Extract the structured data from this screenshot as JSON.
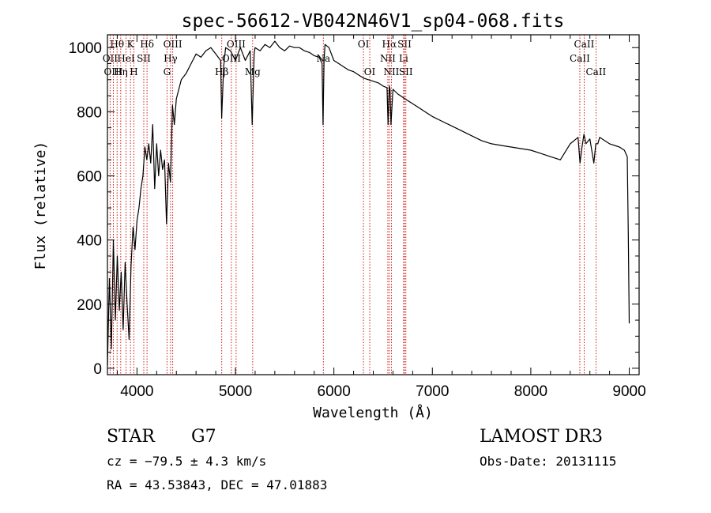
{
  "chart_data": {
    "type": "line",
    "title": "spec-56612-VB042N46V1_sp04-068.fits",
    "xlabel": "Wavelength (Å)",
    "ylabel": "Flux (relative)",
    "xlim": [
      3700,
      9100
    ],
    "ylim": [
      -20,
      1040
    ],
    "xticks": [
      4000,
      5000,
      6000,
      7000,
      8000,
      9000
    ],
    "xtick_labels": [
      "4000",
      "5000",
      "6000",
      "7000",
      "8000",
      "9000"
    ],
    "yticks": [
      0,
      200,
      400,
      600,
      800,
      1000
    ],
    "ytick_labels": [
      "0",
      "200",
      "400",
      "600",
      "800",
      "1000"
    ],
    "grid": false,
    "series": [
      {
        "name": "flux",
        "x": [
          3700,
          3720,
          3740,
          3760,
          3780,
          3800,
          3820,
          3840,
          3860,
          3880,
          3900,
          3920,
          3940,
          3960,
          3980,
          4000,
          4020,
          4040,
          4060,
          4080,
          4100,
          4120,
          4140,
          4160,
          4180,
          4200,
          4220,
          4240,
          4260,
          4280,
          4300,
          4320,
          4340,
          4360,
          4380,
          4400,
          4450,
          4500,
          4550,
          4600,
          4650,
          4700,
          4750,
          4800,
          4850,
          4860,
          4880,
          4900,
          4950,
          5000,
          5050,
          5100,
          5150,
          5170,
          5190,
          5200,
          5250,
          5300,
          5350,
          5400,
          5450,
          5500,
          5550,
          5600,
          5650,
          5700,
          5750,
          5800,
          5850,
          5880,
          5890,
          5900,
          5910,
          5950,
          6000,
          6050,
          6100,
          6150,
          6200,
          6250,
          6300,
          6350,
          6400,
          6450,
          6500,
          6540,
          6550,
          6563,
          6570,
          6580,
          6600,
          6650,
          6700,
          6750,
          6800,
          6850,
          6900,
          6950,
          7000,
          7100,
          7200,
          7300,
          7400,
          7500,
          7600,
          7700,
          7800,
          7900,
          8000,
          8100,
          8200,
          8300,
          8400,
          8480,
          8500,
          8520,
          8540,
          8560,
          8600,
          8640,
          8660,
          8680,
          8700,
          8800,
          8900,
          8950,
          8980,
          8990,
          9000
        ],
        "values": [
          10,
          280,
          60,
          400,
          150,
          350,
          180,
          300,
          120,
          330,
          200,
          90,
          320,
          440,
          370,
          460,
          500,
          560,
          600,
          690,
          650,
          700,
          640,
          760,
          560,
          700,
          600,
          680,
          620,
          650,
          450,
          640,
          580,
          820,
          760,
          840,
          900,
          920,
          950,
          980,
          970,
          990,
          1000,
          980,
          960,
          780,
          940,
          1000,
          990,
          960,
          1000,
          960,
          990,
          760,
          980,
          1000,
          990,
          1010,
          1000,
          1020,
          1000,
          990,
          1005,
          1000,
          1000,
          990,
          985,
          975,
          970,
          950,
          760,
          960,
          1010,
          1000,
          960,
          950,
          940,
          930,
          925,
          915,
          905,
          900,
          895,
          890,
          880,
          875,
          760,
          880,
          870,
          760,
          870,
          855,
          845,
          835,
          825,
          815,
          805,
          795,
          785,
          770,
          755,
          740,
          725,
          710,
          700,
          695,
          690,
          685,
          680,
          670,
          660,
          650,
          700,
          720,
          640,
          690,
          730,
          700,
          715,
          640,
          700,
          700,
          720,
          700,
          690,
          680,
          660,
          420,
          140
        ]
      }
    ],
    "line_ids": [
      {
        "label": "Hθ",
        "x": 3798
      },
      {
        "label": "OII",
        "x": 3727
      },
      {
        "label": "OIII",
        "x": 3760
      },
      {
        "label": "HeI",
        "x": 3889
      },
      {
        "label": "Hη",
        "x": 3835
      },
      {
        "label": "K",
        "x": 3934
      },
      {
        "label": "H",
        "x": 3969
      },
      {
        "label": "SII",
        "x": 4069
      },
      {
        "label": "Hδ",
        "x": 4102
      },
      {
        "label": "OIII",
        "x": 4363
      },
      {
        "label": "Hγ",
        "x": 4341
      },
      {
        "label": "G",
        "x": 4305
      },
      {
        "label": "OIII",
        "x": 5007
      },
      {
        "label": "OIII",
        "x": 4959
      },
      {
        "label": "Hβ",
        "x": 4861
      },
      {
        "label": "Mg",
        "x": 5175
      },
      {
        "label": "Na",
        "x": 5893
      },
      {
        "label": "OI",
        "x": 6300
      },
      {
        "label": "OI",
        "x": 6364
      },
      {
        "label": "Hα",
        "x": 6563
      },
      {
        "label": "SII",
        "x": 6717
      },
      {
        "label": "NII",
        "x": 6548
      },
      {
        "label": "Li",
        "x": 6708
      },
      {
        "label": "NII",
        "x": 6584
      },
      {
        "label": "SII",
        "x": 6731
      },
      {
        "label": "CaII",
        "x": 8542
      },
      {
        "label": "CaII",
        "x": 8498
      },
      {
        "label": "CaII",
        "x": 8662
      }
    ],
    "line_id_colors": {
      "text": "#000000",
      "marker": "#cc0000"
    }
  },
  "info": {
    "class": "STAR",
    "subclass": "G7",
    "cz": "cz = −79.5 ± 4.3 km/s",
    "radec": "RA =  43.53843, DEC =  47.01883",
    "survey": "LAMOST DR3",
    "obsdate": "Obs-Date: 20131115"
  }
}
